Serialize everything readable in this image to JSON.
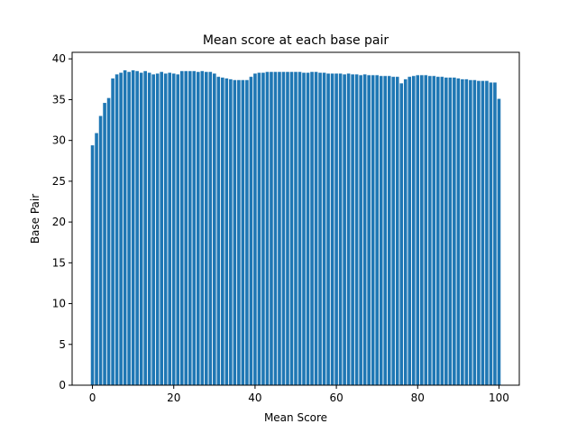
{
  "chart_data": {
    "type": "bar",
    "title": "Mean score at each base pair",
    "xlabel": "Mean Score",
    "ylabel": "Base Pair",
    "xlim": [
      -5,
      105
    ],
    "ylim": [
      0,
      40.8
    ],
    "xticks": [
      0,
      20,
      40,
      60,
      80,
      100
    ],
    "yticks": [
      0,
      5,
      10,
      15,
      20,
      25,
      30,
      35,
      40
    ],
    "grid": false,
    "bar_color": "#1f77b4",
    "x": [
      0,
      1,
      2,
      3,
      4,
      5,
      6,
      7,
      8,
      9,
      10,
      11,
      12,
      13,
      14,
      15,
      16,
      17,
      18,
      19,
      20,
      21,
      22,
      23,
      24,
      25,
      26,
      27,
      28,
      29,
      30,
      31,
      32,
      33,
      34,
      35,
      36,
      37,
      38,
      39,
      40,
      41,
      42,
      43,
      44,
      45,
      46,
      47,
      48,
      49,
      50,
      51,
      52,
      53,
      54,
      55,
      56,
      57,
      58,
      59,
      60,
      61,
      62,
      63,
      64,
      65,
      66,
      67,
      68,
      69,
      70,
      71,
      72,
      73,
      74,
      75,
      76,
      77,
      78,
      79,
      80,
      81,
      82,
      83,
      84,
      85,
      86,
      87,
      88,
      89,
      90,
      91,
      92,
      93,
      94,
      95,
      96,
      97,
      98,
      99,
      100
    ],
    "values": [
      29.4,
      30.9,
      33.0,
      34.6,
      35.2,
      37.6,
      38.1,
      38.3,
      38.6,
      38.4,
      38.6,
      38.5,
      38.3,
      38.5,
      38.3,
      38.1,
      38.2,
      38.4,
      38.2,
      38.3,
      38.2,
      38.1,
      38.5,
      38.5,
      38.5,
      38.5,
      38.4,
      38.5,
      38.4,
      38.4,
      38.2,
      37.8,
      37.7,
      37.6,
      37.5,
      37.4,
      37.4,
      37.4,
      37.4,
      37.8,
      38.2,
      38.3,
      38.3,
      38.4,
      38.4,
      38.4,
      38.4,
      38.4,
      38.4,
      38.4,
      38.4,
      38.4,
      38.3,
      38.3,
      38.4,
      38.4,
      38.3,
      38.3,
      38.2,
      38.2,
      38.2,
      38.2,
      38.1,
      38.2,
      38.1,
      38.1,
      38.0,
      38.1,
      38.0,
      38.0,
      38.0,
      37.9,
      37.9,
      37.9,
      37.8,
      37.8,
      37.0,
      37.5,
      37.8,
      37.9,
      38.0,
      38.0,
      38.0,
      37.9,
      37.9,
      37.8,
      37.8,
      37.7,
      37.7,
      37.7,
      37.6,
      37.5,
      37.5,
      37.4,
      37.4,
      37.3,
      37.3,
      37.3,
      37.1,
      37.1,
      35.1
    ]
  }
}
